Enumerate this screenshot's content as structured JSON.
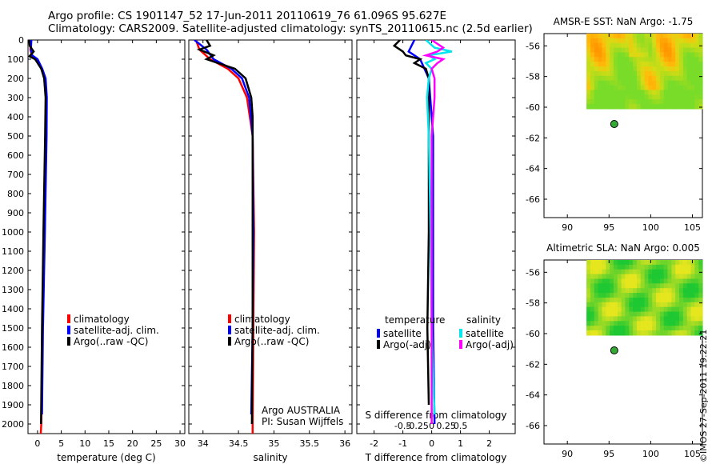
{
  "header": {
    "line1": "Argo profile: CS 1901147_52 17-Jun-2011 20110619_76 61.096S 95.627E",
    "line2": "Climatology: CARS2009. Satellite-adjusted climatology: synTS_20110615.nc (2.5d earlier)"
  },
  "colors": {
    "climatology": "#ff0000",
    "satellite": "#0000ff",
    "argo": "#000000",
    "sat_s": "#00e5ee",
    "argo_s": "#ff00ff",
    "marker": "#33aa33"
  },
  "depth_axis": {
    "min": 0,
    "max": 2050,
    "ticks": [
      0,
      100,
      200,
      300,
      400,
      500,
      600,
      700,
      800,
      900,
      1000,
      1100,
      1200,
      1300,
      1400,
      1500,
      1600,
      1700,
      1800,
      1900,
      2000
    ]
  },
  "chart_data": [
    {
      "id": "temperature",
      "type": "line",
      "xlabel": "temperature (deg C)",
      "xlim": [
        -2,
        31
      ],
      "xticks": [
        0,
        5,
        10,
        15,
        20,
        25,
        30
      ],
      "legend": {
        "placement": "lower-center",
        "entries": [
          "climatology",
          "satellite-adj. clim.",
          "Argo(..raw -QC)"
        ]
      },
      "series": [
        {
          "name": "climatology",
          "color": "#ff0000",
          "depth": [
            0,
            50,
            80,
            100,
            150,
            200,
            300,
            500,
            1000,
            1500,
            2000,
            2050
          ],
          "values": [
            -1.4,
            -1.5,
            -1.2,
            -0.2,
            0.8,
            1.6,
            1.9,
            1.85,
            1.5,
            1.05,
            0.8,
            0.7
          ]
        },
        {
          "name": "satellite-adj. clim.",
          "color": "#0000ff",
          "depth": [
            0,
            50,
            80,
            100,
            150,
            200,
            300,
            500,
            1000,
            1500,
            1950
          ],
          "values": [
            -1.3,
            -1.4,
            -1.1,
            0.0,
            1.0,
            1.7,
            1.95,
            1.9,
            1.55,
            1.15,
            0.95
          ]
        },
        {
          "name": "Argo(..raw -QC)",
          "color": "#000000",
          "depth": [
            0,
            30,
            60,
            85,
            100,
            150,
            200,
            300,
            500,
            1000,
            1500,
            2000
          ],
          "values": [
            -1.75,
            -1.65,
            -0.8,
            -1.7,
            -0.5,
            0.8,
            1.4,
            1.7,
            1.6,
            1.25,
            0.95,
            0.75
          ]
        }
      ]
    },
    {
      "id": "salinity",
      "type": "line",
      "xlabel": "salinity",
      "xlim": [
        33.8,
        36.1
      ],
      "xticks": [
        34,
        34.5,
        35,
        35.5,
        36
      ],
      "legend": {
        "placement": "lower-center",
        "entries": [
          "climatology",
          "satellite-adj. clim.",
          "Argo(..raw -QC)"
        ]
      },
      "series": [
        {
          "name": "climatology",
          "color": "#ff0000",
          "depth": [
            0,
            50,
            100,
            150,
            200,
            300,
            500,
            1000,
            1500,
            2000,
            2050
          ],
          "values": [
            33.9,
            33.95,
            34.1,
            34.35,
            34.5,
            34.62,
            34.7,
            34.72,
            34.71,
            34.7,
            34.7
          ]
        },
        {
          "name": "satellite-adj. clim.",
          "color": "#0000ff",
          "depth": [
            0,
            50,
            100,
            150,
            200,
            300,
            500,
            1000,
            1500,
            1950
          ],
          "values": [
            33.88,
            34.05,
            34.15,
            34.4,
            34.55,
            34.65,
            34.7,
            34.71,
            34.7,
            34.68
          ]
        },
        {
          "name": "Argo(..raw -QC)",
          "color": "#000000",
          "depth": [
            0,
            30,
            50,
            80,
            100,
            150,
            200,
            300,
            400,
            500,
            1000,
            1500,
            2000
          ],
          "values": [
            34.05,
            34.1,
            33.95,
            34.15,
            34.05,
            34.45,
            34.6,
            34.68,
            34.7,
            34.7,
            34.7,
            34.7,
            34.69
          ]
        }
      ]
    },
    {
      "id": "difference",
      "type": "line",
      "xlabel": "T difference from climatology",
      "xlim": [
        -2.6,
        2.9
      ],
      "xticks": [
        -2,
        -1,
        0,
        1,
        2
      ],
      "top_axis": {
        "label": "S difference from climatology",
        "ticks": [
          -0.5,
          -0.25,
          0,
          0.25,
          0.5
        ]
      },
      "legend": {
        "placement": "lower-center",
        "col1_title": "temperature",
        "col2_title": "salinity",
        "entries": [
          "satellite",
          "Argo(-adj)",
          "satellite",
          "Argo(-adj)"
        ]
      },
      "series": [
        {
          "name": "temperature satellite",
          "color": "#0000ff",
          "depth": [
            0,
            60,
            100,
            200,
            500,
            1000,
            1500,
            2000
          ],
          "values": [
            -0.6,
            -0.8,
            -0.4,
            -0.1,
            0.05,
            0.05,
            0.05,
            0.1
          ]
        },
        {
          "name": "temperature Argo(-adj)",
          "color": "#000000",
          "depth": [
            0,
            30,
            60,
            80,
            100,
            120,
            150,
            200,
            300,
            500,
            1000,
            1500,
            1900
          ],
          "values": [
            -1.1,
            -1.3,
            -1.0,
            -0.9,
            -0.4,
            -0.6,
            -0.2,
            -0.1,
            -0.1,
            -0.1,
            -0.1,
            -0.15,
            -0.1
          ]
        },
        {
          "name": "salinity satellite",
          "color": "#00e5ee",
          "depth": [
            0,
            40,
            60,
            80,
            100,
            120,
            150,
            200,
            300,
            500,
            1000,
            1500,
            1950
          ],
          "values": [
            -0.1,
            0.05,
            0.35,
            -0.05,
            0.05,
            -0.1,
            0.0,
            -0.05,
            -0.08,
            -0.05,
            -0.02,
            0.0,
            0.05
          ]
        },
        {
          "name": "salinity Argo(-adj)",
          "color": "#ff00ff",
          "depth": [
            0,
            40,
            60,
            80,
            100,
            120,
            150,
            200,
            300,
            500,
            1000,
            1500,
            2000
          ],
          "values": [
            0.0,
            0.2,
            0.1,
            -0.1,
            0.2,
            0.1,
            0.0,
            0.05,
            0.05,
            0.0,
            0.0,
            0.0,
            0.0
          ]
        }
      ]
    },
    {
      "id": "sst_map",
      "type": "heatmap",
      "title": "AMSR-E SST: NaN Argo: -1.75",
      "xlim": [
        87.2,
        106.2
      ],
      "ylim": [
        -67.2,
        -55.2
      ],
      "xticks": [
        90,
        95,
        100,
        105
      ],
      "yticks": [
        -56,
        -58,
        -60,
        -62,
        -64,
        -66
      ],
      "data_extent": {
        "lon": [
          92.3,
          106.2
        ],
        "lat": [
          -60.1,
          -55.2
        ]
      },
      "argo_position": {
        "lon": 95.627,
        "lat": -61.096
      }
    },
    {
      "id": "sla_map",
      "type": "heatmap",
      "title": "Altimetric SLA: NaN Argo: 0.005",
      "xlim": [
        87.2,
        106.2
      ],
      "ylim": [
        -67.2,
        -55.2
      ],
      "xticks": [
        90,
        95,
        100,
        105
      ],
      "yticks": [
        -56,
        -58,
        -60,
        -62,
        -64,
        -66
      ],
      "data_extent": {
        "lon": [
          92.3,
          106.2
        ],
        "lat": [
          -60.1,
          -55.2
        ]
      },
      "argo_position": {
        "lon": 95.627,
        "lat": -61.096
      }
    }
  ],
  "annotations": {
    "float_line1": "Argo AUSTRALIA",
    "float_line2": "PI: Susan Wijffels"
  },
  "credit": "©IMOS 27-Sep-2011 19:22:21"
}
